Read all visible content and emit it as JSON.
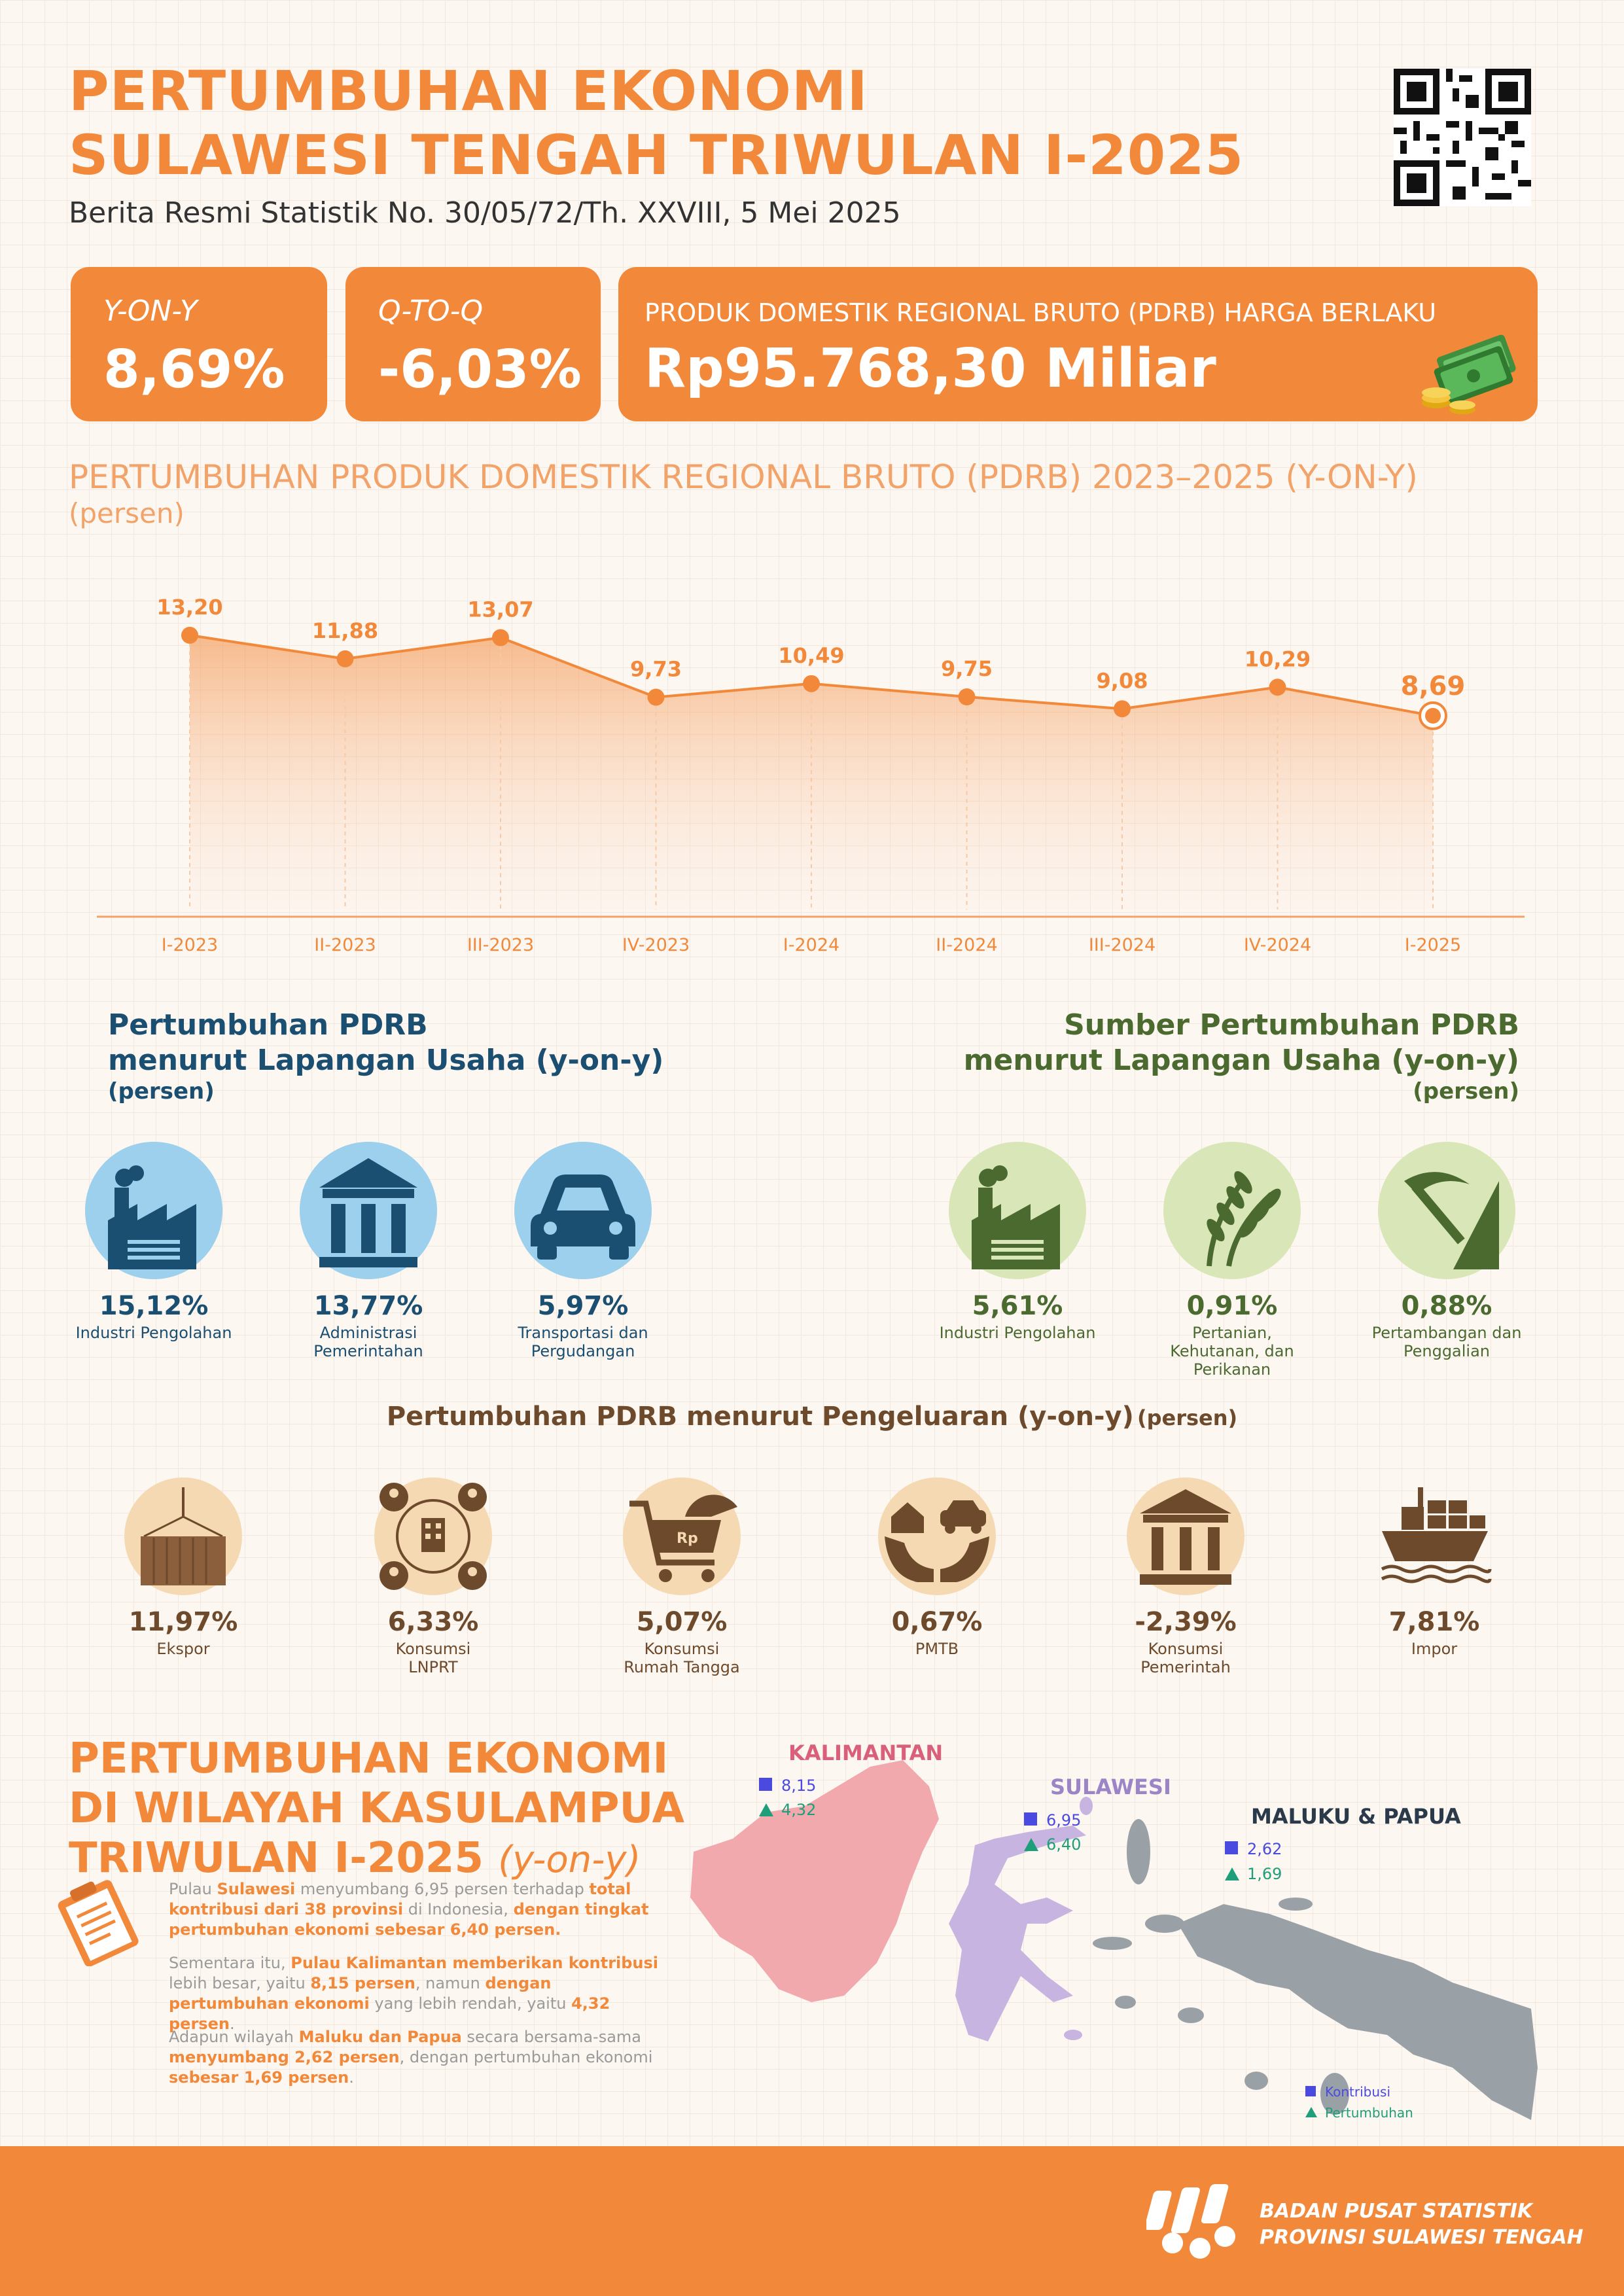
{
  "header": {
    "title_line1": "PERTUMBUHAN EKONOMI",
    "title_line2": "SULAWESI TENGAH TRIWULAN I-2025",
    "subtitle": "Berita Resmi Statistik No. 30/05/72/Th. XXVIII, 5 Mei 2025"
  },
  "cards": {
    "yoy_label": "Y-ON-Y",
    "yoy_value": "8,69%",
    "qtq_label": "Q-TO-Q",
    "qtq_value": "-6,03%",
    "pdrb_label": "PRODUK DOMESTIK REGIONAL BRUTO (PDRB) HARGA BERLAKU",
    "pdrb_value": "Rp95.768,30 Miliar"
  },
  "colors": {
    "accent": "#f2893a",
    "blue": "#1b4f72",
    "green": "#4a6a30",
    "brown": "#6d4a2b"
  },
  "chart_data": {
    "type": "area",
    "title": "PERTUMBUHAN PRODUK DOMESTIK REGIONAL BRUTO (PDRB) 2023–2025 (Y-ON-Y)",
    "unit": "(persen)",
    "categories": [
      "I-2023",
      "II-2023",
      "III-2023",
      "IV-2023",
      "I-2024",
      "II-2024",
      "III-2024",
      "IV-2024",
      "I-2025"
    ],
    "values": [
      13.2,
      11.88,
      13.07,
      9.73,
      10.49,
      9.75,
      9.08,
      10.29,
      8.69
    ],
    "labels": [
      "13,20",
      "11,88",
      "13,07",
      "9,73",
      "10,49",
      "9,75",
      "9,08",
      "10,29",
      "8,69"
    ],
    "ylim": [
      0,
      14
    ],
    "grid": false
  },
  "lapangan": {
    "title_line1": "Pertumbuhan PDRB",
    "title_line2": "menurut Lapangan Usaha (y-on-y)",
    "unit": "(persen)",
    "items": [
      {
        "value": "15,12%",
        "caption": "Industri Pengolahan",
        "icon": "factory-icon"
      },
      {
        "value": "13,77%",
        "caption": "Administrasi Pemerintahan",
        "icon": "government-building-icon"
      },
      {
        "value": "5,97%",
        "caption": "Transportasi dan Pergudangan",
        "icon": "car-icon"
      }
    ]
  },
  "sumber": {
    "title_line1": "Sumber Pertumbuhan PDRB",
    "title_line2": "menurut Lapangan Usaha (y-on-y)",
    "unit": "(persen)",
    "items": [
      {
        "value": "5,61%",
        "caption": "Industri Pengolahan",
        "icon": "factory-icon"
      },
      {
        "value": "0,91%",
        "caption": "Pertanian, Kehutanan, dan Perikanan",
        "icon": "wheat-icon"
      },
      {
        "value": "0,88%",
        "caption": "Pertambangan dan Penggalian",
        "icon": "pickaxe-icon"
      }
    ]
  },
  "pengeluaran": {
    "title": "Pertumbuhan PDRB menurut Pengeluaran (y-on-y)",
    "unit": "(persen)",
    "items": [
      {
        "value": "11,97%",
        "caption": "Ekspor",
        "icon": "container-icon"
      },
      {
        "value": "6,33%",
        "caption": "Konsumsi LNPRT",
        "icon": "community-icon"
      },
      {
        "value": "5,07%",
        "caption": "Konsumsi Rumah Tangga",
        "icon": "shopping-cart-icon"
      },
      {
        "value": "0,67%",
        "caption": "PMTB",
        "icon": "hands-house-icon"
      },
      {
        "value": "-2,39%",
        "caption": "Konsumsi Pemerintah",
        "icon": "government-building-icon"
      },
      {
        "value": "7,81%",
        "caption": "Impor",
        "icon": "cargo-ship-icon"
      }
    ]
  },
  "kasulampua": {
    "title_line1": "PERTUMBUHAN EKONOMI",
    "title_line2": "DI WILAYAH KASULAMPUA",
    "title_line3": "TRIWULAN I-2025",
    "title_suffix": "(y-on-y)",
    "p1_a": "Pulau ",
    "p1_b": "Sulawesi",
    "p1_c": " menyumbang 6,95 persen terhadap ",
    "p1_d": "total kontribusi dari 38 provinsi",
    "p1_e": " di Indonesia, ",
    "p1_f": "dengan tingkat pertumbuhan ekonomi sebesar 6,40 persen.",
    "p2_a": "Sementara itu, ",
    "p2_b": "Pulau Kalimantan memberikan kontribusi",
    "p2_c": " lebih besar, yaitu ",
    "p2_d": "8,15 persen",
    "p2_e": ", namun ",
    "p2_f": "dengan pertumbuhan ekonomi",
    "p2_g": " yang lebih rendah, yaitu ",
    "p2_h": "4,32 persen",
    "p2_i": ".",
    "p3_a": "Adapun wilayah ",
    "p3_b": "Maluku dan Papua",
    "p3_c": " secara bersama-sama ",
    "p3_d": "menyumbang 2,62 persen",
    "p3_e": ", dengan pertumbuhan ekonomi ",
    "p3_f": "sebesar 1,69 persen",
    "p3_g": ".",
    "regions": [
      {
        "name": "KALIMANTAN",
        "kontribusi": "8,15",
        "pertumbuhan": "4,32",
        "color": "#d9607a"
      },
      {
        "name": "SULAWESI",
        "kontribusi": "6,95",
        "pertumbuhan": "6,40",
        "color": "#9b85c6"
      },
      {
        "name": "MALUKU & PAPUA",
        "kontribusi": "2,62",
        "pertumbuhan": "1,69",
        "color": "#2b3a4a"
      }
    ],
    "legend_kontribusi": "Kontribusi",
    "legend_pertumbuhan": "Pertumbuhan"
  },
  "footer": {
    "org_line1": "BADAN PUSAT STATISTIK",
    "org_line2": "PROVINSI SULAWESI TENGAH"
  }
}
